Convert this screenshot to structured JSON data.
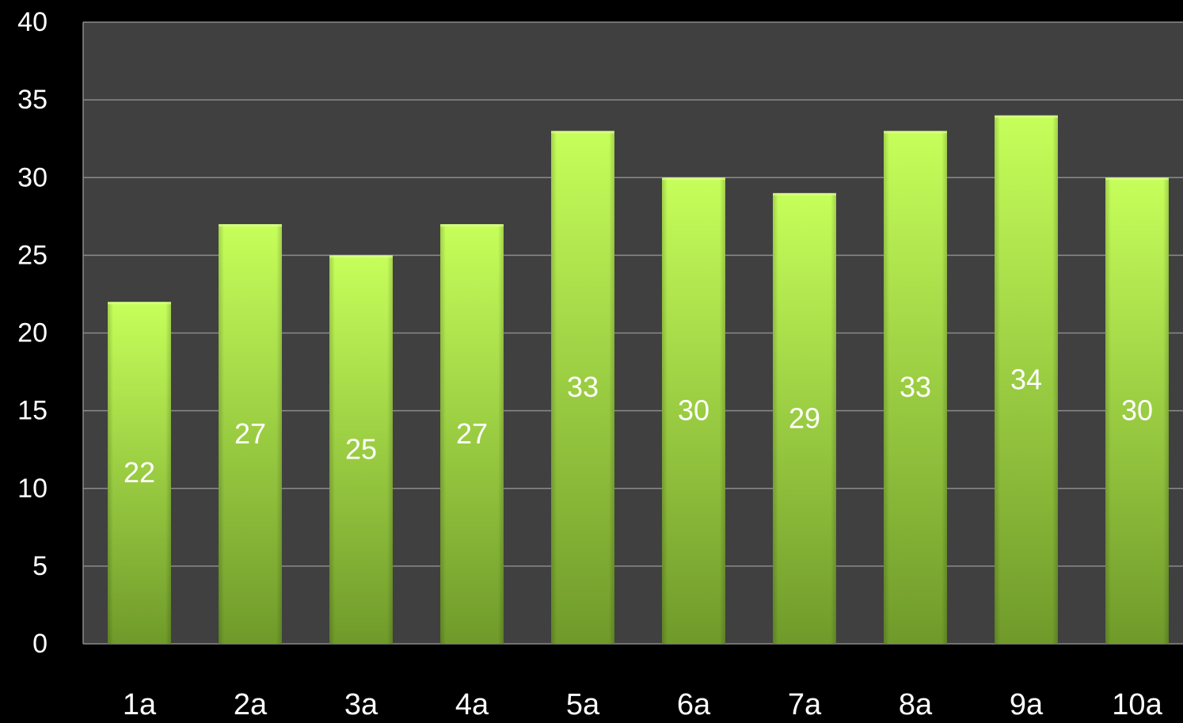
{
  "chart_data": {
    "type": "bar",
    "categories": [
      "1a",
      "2a",
      "3a",
      "4a",
      "5a",
      "6a",
      "7a",
      "8a",
      "9a",
      "10a"
    ],
    "values": [
      22,
      27,
      25,
      27,
      33,
      30,
      29,
      33,
      34,
      30
    ],
    "data_labels": [
      "22",
      "27",
      "25",
      "27",
      "33",
      "30",
      "29",
      "33",
      "34",
      "30"
    ],
    "y_ticks": [
      "0",
      "5",
      "10",
      "15",
      "20",
      "25",
      "30",
      "35",
      "40"
    ],
    "ylim": [
      0,
      40
    ],
    "grid": true,
    "legend": false
  },
  "colors": {
    "page_background": "#000000",
    "plot_background": "#404040",
    "gridline": "#8a8a8a",
    "bar_top": "#c6ff5a",
    "bar_bottom": "#6f9a2a",
    "tick_text": "#ffffff",
    "data_label_text": "#ffffff"
  }
}
